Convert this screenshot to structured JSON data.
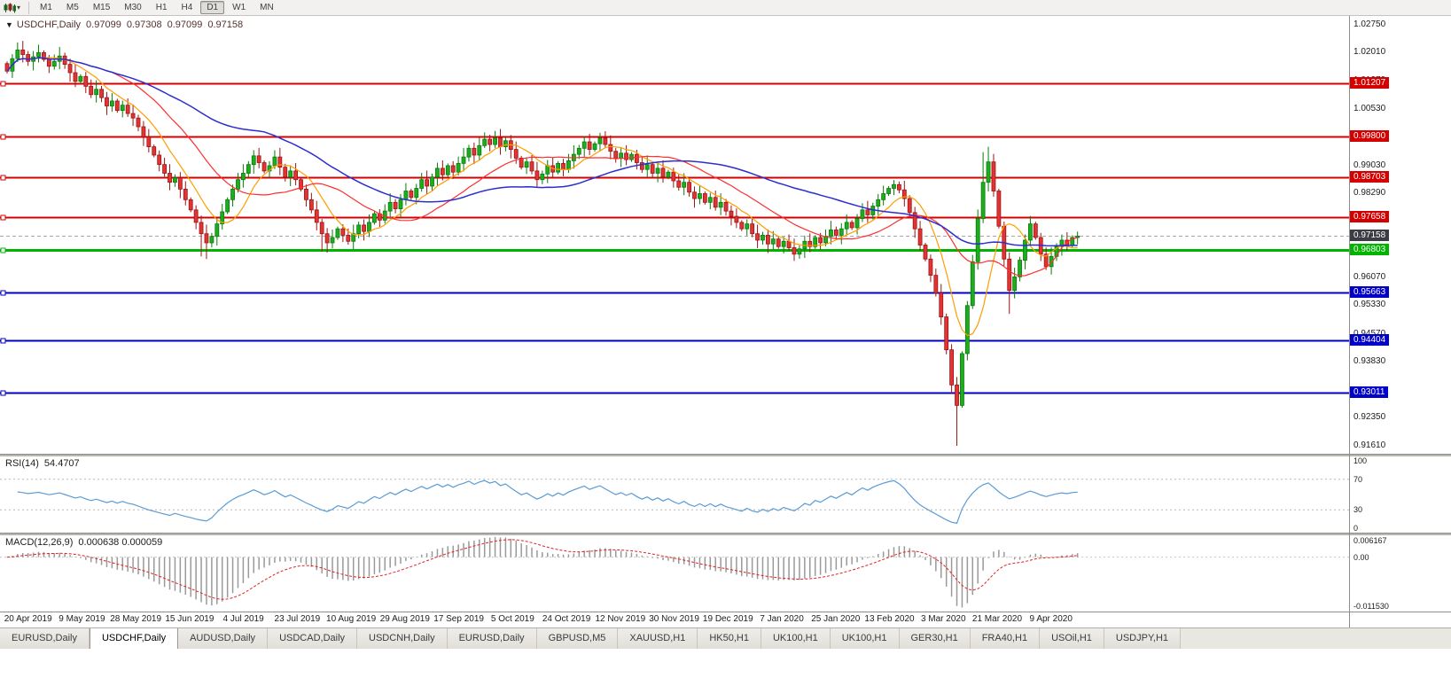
{
  "toolbar": {
    "chart_type_icon": "candlestick-chart-icon",
    "dropdown_icon": "chevron-down-icon",
    "timeframes": [
      "M1",
      "M5",
      "M15",
      "M30",
      "H1",
      "H4",
      "D1",
      "W1",
      "MN"
    ],
    "active_timeframe": "D1"
  },
  "chart_header": {
    "collapse_icon": "triangle-down-icon",
    "symbol": "USDCHF,Daily",
    "open": "0.97099",
    "high": "0.97308",
    "low": "0.97099",
    "close": "0.97158"
  },
  "chart_data": {
    "type": "candlestick",
    "symbol": "USDCHF",
    "timeframe": "Daily",
    "y_range": {
      "max": 1.0298,
      "min": 0.914
    },
    "y_ticks": [
      "1.02750",
      "1.02010",
      "1.01270",
      "1.00530",
      "0.99790",
      "0.99030",
      "0.98290",
      "0.96070",
      "0.95330",
      "0.94570",
      "0.93830",
      "0.92350",
      "0.91610"
    ],
    "x_labels": [
      "20 Apr 2019",
      "9 May 2019",
      "28 May 2019",
      "15 Jun 2019",
      "4 Jul 2019",
      "23 Jul 2019",
      "10 Aug 2019",
      "29 Aug 2019",
      "17 Sep 2019",
      "5 Oct 2019",
      "24 Oct 2019",
      "12 Nov 2019",
      "30 Nov 2019",
      "19 Dec 2019",
      "7 Jan 2020",
      "25 Jan 2020",
      "13 Feb 2020",
      "3 Mar 2020",
      "21 Mar 2020",
      "9 Apr 2020"
    ],
    "levels": [
      {
        "price": 1.01207,
        "label": "1.01207",
        "color": "#d40000",
        "width": 2
      },
      {
        "price": 0.998,
        "label": "0.99800",
        "color": "#d40000",
        "width": 2
      },
      {
        "price": 0.98703,
        "label": "0.98703",
        "color": "#d40000",
        "width": 2
      },
      {
        "price": 0.97658,
        "label": "0.97658",
        "color": "#d40000",
        "width": 2
      },
      {
        "price": 0.96803,
        "label": "0.96803",
        "color": "#00b400",
        "width": 3
      },
      {
        "price": 0.95663,
        "label": "0.95663",
        "color": "#0000c8",
        "width": 2
      },
      {
        "price": 0.94404,
        "label": "0.94404",
        "color": "#0000c8",
        "width": 2
      },
      {
        "price": 0.93011,
        "label": "0.93011",
        "color": "#0000c8",
        "width": 2
      }
    ],
    "current_price": {
      "price": 0.97158,
      "label": "0.97158",
      "line_color": "#a8a8a8",
      "badge_color": "#3c3c44"
    },
    "colors": {
      "up_fill": "#1cae1c",
      "up_stroke": "#0a7a0a",
      "down_fill": "#e23434",
      "down_stroke": "#9c1414",
      "macd_hist": "#9a9a9a",
      "macd_signal": "#e02020",
      "rsi_line": "#5a9bd4"
    },
    "first_open": 1.0172,
    "candles_close": [
      1.0152,
      1.0185,
      1.0208,
      1.0196,
      1.0178,
      1.019,
      1.0201,
      1.0183,
      1.0165,
      1.0178,
      1.0192,
      1.017,
      1.0148,
      1.0125,
      1.0138,
      1.0112,
      1.009,
      1.0104,
      1.0082,
      1.006,
      1.0073,
      1.0048,
      1.0062,
      1.004,
      1.0028,
      1.0005,
      0.9978,
      0.9952,
      0.993,
      0.9905,
      0.9882,
      0.9858,
      0.987,
      0.984,
      0.9812,
      0.9785,
      0.9752,
      0.9722,
      0.9698,
      0.9715,
      0.9748,
      0.978,
      0.9812,
      0.984,
      0.9865,
      0.9882,
      0.9905,
      0.9928,
      0.991,
      0.9888,
      0.9902,
      0.9925,
      0.9898,
      0.9872,
      0.9888,
      0.9865,
      0.984,
      0.9812,
      0.9785,
      0.9752,
      0.9722,
      0.9698,
      0.9712,
      0.9735,
      0.9718,
      0.9702,
      0.9722,
      0.9745,
      0.9728,
      0.9752,
      0.9775,
      0.9758,
      0.9782,
      0.9805,
      0.9788,
      0.9812,
      0.9835,
      0.9818,
      0.9842,
      0.9865,
      0.9848,
      0.9872,
      0.9895,
      0.9878,
      0.9902,
      0.9885,
      0.9908,
      0.9925,
      0.9948,
      0.993,
      0.9955,
      0.9972,
      0.9958,
      0.9975,
      0.9952,
      0.9968,
      0.9945,
      0.9922,
      0.9898,
      0.9912,
      0.9888,
      0.9865,
      0.988,
      0.9902,
      0.9885,
      0.9908,
      0.9892,
      0.9915,
      0.9932,
      0.9948,
      0.9965,
      0.9945,
      0.996,
      0.9975,
      0.9958,
      0.994,
      0.9922,
      0.9935,
      0.9918,
      0.9932,
      0.991,
      0.9892,
      0.9905,
      0.9882,
      0.9895,
      0.9872,
      0.9885,
      0.9862,
      0.9845,
      0.9858,
      0.9832,
      0.9815,
      0.9828,
      0.9805,
      0.9818,
      0.9792,
      0.9805,
      0.9782,
      0.9768,
      0.9752,
      0.9735,
      0.9748,
      0.9722,
      0.9705,
      0.9718,
      0.9695,
      0.9708,
      0.9688,
      0.9702,
      0.9685,
      0.9668,
      0.9682,
      0.9702,
      0.9688,
      0.9712,
      0.9698,
      0.9715,
      0.9732,
      0.9718,
      0.9735,
      0.9752,
      0.9738,
      0.9762,
      0.9785,
      0.9772,
      0.9795,
      0.9812,
      0.9828,
      0.9842,
      0.9852,
      0.9838,
      0.9815,
      0.9778,
      0.9735,
      0.9692,
      0.9655,
      0.9612,
      0.9565,
      0.9502,
      0.9415,
      0.9322,
      0.9268,
      0.9405,
      0.9532,
      0.9648,
      0.9762,
      0.9858,
      0.9912,
      0.9835,
      0.9742,
      0.9655,
      0.9572,
      0.9608,
      0.9652,
      0.9705,
      0.9748,
      0.9712,
      0.9668,
      0.9635,
      0.9662,
      0.9688,
      0.9705,
      0.9692,
      0.9712,
      0.97158
    ],
    "wick_overrides": {
      "2": {
        "high": 1.0228
      },
      "6": {
        "high": 1.0222
      },
      "37": {
        "low": 0.9662
      },
      "38": {
        "low": 0.9655
      },
      "60": {
        "low": 0.9675
      },
      "61": {
        "low": 0.9672
      },
      "91": {
        "high": 0.999
      },
      "93": {
        "high": 0.9994
      },
      "113": {
        "high": 0.9989
      },
      "150": {
        "low": 0.965
      },
      "170": {
        "high": 0.986
      },
      "181": {
        "low": 0.9161
      },
      "186": {
        "high": 0.9938
      },
      "187": {
        "high": 0.9952
      },
      "191": {
        "low": 0.951
      }
    },
    "indicators": {
      "ma": [
        {
          "period": 8,
          "color": "#ff9d00",
          "width": 1.2
        },
        {
          "period": 20,
          "color": "#ff2e2e",
          "width": 1.2
        },
        {
          "period": 50,
          "color": "#2d2dd0",
          "width": 1.5
        }
      ],
      "rsi": {
        "title": "RSI(14)",
        "value": "54.4707",
        "period": 14,
        "scale_values": [
          100,
          70,
          30,
          0
        ],
        "scale_labels": [
          "100",
          "70",
          "30",
          "0"
        ],
        "dotted_levels": [
          70,
          30
        ]
      },
      "macd": {
        "title": "MACD(12,26,9)",
        "values": "0.000638 0.000059",
        "fast": 12,
        "slow": 26,
        "signal": 9,
        "scale_labels": [
          "0.006167",
          "0.00",
          "-0.011530"
        ]
      }
    }
  },
  "tabs": {
    "active_index": 1,
    "items": [
      "EURUSD,Daily",
      "USDCHF,Daily",
      "AUDUSD,Daily",
      "USDCAD,Daily",
      "USDCNH,Daily",
      "EURUSD,Daily",
      "GBPUSD,M5",
      "XAUUSD,H1",
      "HK50,H1",
      "UK100,H1",
      "UK100,H1",
      "GER30,H1",
      "FRA40,H1",
      "USOil,H1",
      "USDJPY,H1"
    ]
  }
}
